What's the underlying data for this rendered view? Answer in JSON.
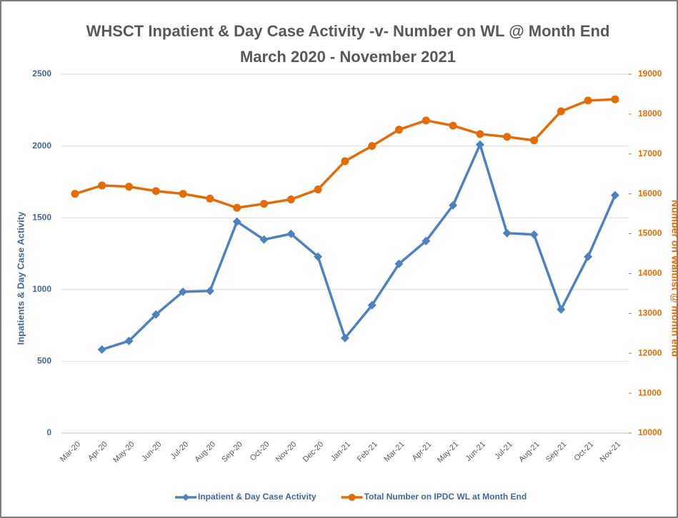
{
  "chart_data": {
    "type": "line",
    "title": "WHSCT  Inpatient & Day Case Activity -v- Number on WL @ Month End",
    "subtitle": "March 2020  -  November 2021",
    "ylabel": "Inpatients & Day Case Activity",
    "y2label": "Number on Waitlist @ month end",
    "categories": [
      "Mar-20",
      "Apr-20",
      "May-20",
      "Jun-20",
      "Jul-20",
      "Aug-20",
      "Sep-20",
      "Oct-20",
      "Nov-20",
      "Dec-20",
      "Jan-21",
      "Feb-21",
      "Mar-21",
      "Apr-21",
      "May-21",
      "Jun-21",
      "Jul-21",
      "Aug-21",
      "Sep-21",
      "Oct-21",
      "Nov-21"
    ],
    "series": [
      {
        "name": "Inpatient & Day Case Activity",
        "color": "#4f81bd",
        "marker": "diamond",
        "values": [
          null,
          582,
          642,
          826,
          985,
          990,
          1473,
          1348,
          1388,
          1229,
          662,
          891,
          1179,
          1338,
          1587,
          2010,
          1393,
          1383,
          861,
          1229,
          1657
        ]
      },
      {
        "name": "Total Number on IPDC WL at Month End",
        "color": "#e36c09",
        "marker": "circle",
        "axis": "y2",
        "values": [
          16000,
          16210,
          16180,
          16070,
          16000,
          15880,
          15650,
          15750,
          15860,
          16110,
          16820,
          17200,
          17610,
          17840,
          17710,
          17500,
          17430,
          17340,
          18070,
          18340,
          18370
        ]
      }
    ],
    "ylim": [
      0,
      2500
    ],
    "yticks": [
      0,
      500,
      1000,
      1500,
      2000,
      2500
    ],
    "y2lim": [
      10000,
      19000
    ],
    "y2ticks": [
      10000,
      11000,
      12000,
      13000,
      14000,
      15000,
      16000,
      17000,
      18000,
      19000
    ],
    "grid": true,
    "legend": "bottom"
  }
}
